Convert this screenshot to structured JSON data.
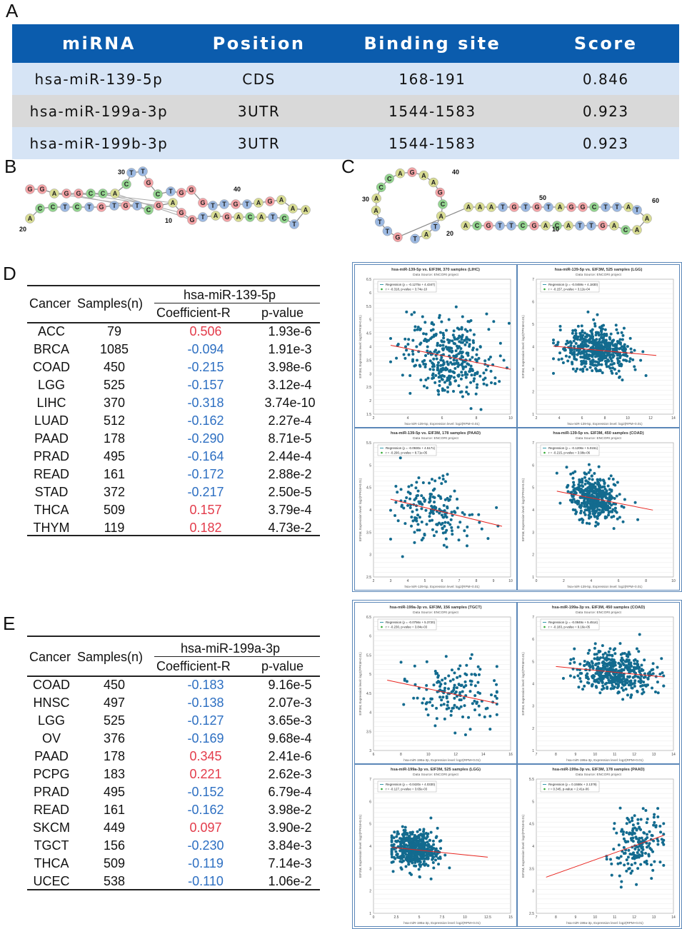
{
  "panel_labels": {
    "a": "A",
    "b": "B",
    "c": "C",
    "d": "D",
    "e": "E"
  },
  "table_a": {
    "headers": [
      "miRNA",
      "Position",
      "Binding site",
      "Score"
    ],
    "rows": [
      [
        "hsa-miR-139-5p",
        "CDS",
        "168-191",
        "0.846"
      ],
      [
        "hsa-miR-199a-3p",
        "3UTR",
        "1544-1583",
        "0.923"
      ],
      [
        "hsa-miR-199b-3p",
        "3UTR",
        "1544-1583",
        "0.923"
      ]
    ]
  },
  "structure_b": {
    "top_strand": "GGAGGCCA",
    "loop": "CTT",
    "bottom_strand": "ACCTCTGTGCTGGAGTTGTAGACATCTAAA",
    "numbers": [
      "30",
      "40",
      "20",
      "10"
    ]
  },
  "structure_c": {
    "loop": "TATACGAAGACCAATTG",
    "top_strand": "AAATGTGTAGGCTTA",
    "bottom_strand": "ACAGTTACAGCTTGCA",
    "numbers": [
      "40",
      "30",
      "20",
      "50",
      "60",
      "10"
    ]
  },
  "table_d": {
    "col_cancer": "Cancer",
    "col_samples": "Samples(n)",
    "mirna": "hsa-miR-139-5p",
    "col_r": "Coefficient-R",
    "col_p": "p-value",
    "rows": [
      {
        "cancer": "ACC",
        "n": "79",
        "r": "0.506",
        "p": "1.93e-6",
        "sign": "pos"
      },
      {
        "cancer": "BRCA",
        "n": "1085",
        "r": "-0.094",
        "p": "1.91e-3",
        "sign": "neg"
      },
      {
        "cancer": "COAD",
        "n": "450",
        "r": "-0.215",
        "p": "3.98e-6",
        "sign": "neg"
      },
      {
        "cancer": "LGG",
        "n": "525",
        "r": "-0.157",
        "p": "3.12e-4",
        "sign": "neg"
      },
      {
        "cancer": "LIHC",
        "n": "370",
        "r": "-0.318",
        "p": "3.74e-10",
        "sign": "neg"
      },
      {
        "cancer": "LUAD",
        "n": "512",
        "r": "-0.162",
        "p": "2.27e-4",
        "sign": "neg"
      },
      {
        "cancer": "PAAD",
        "n": "178",
        "r": "-0.290",
        "p": "8.71e-5",
        "sign": "neg"
      },
      {
        "cancer": "PRAD",
        "n": "495",
        "r": "-0.164",
        "p": "2.44e-4",
        "sign": "neg"
      },
      {
        "cancer": "READ",
        "n": "161",
        "r": "-0.172",
        "p": "2.88e-2",
        "sign": "neg"
      },
      {
        "cancer": "STAD",
        "n": "372",
        "r": "-0.217",
        "p": "2.50e-5",
        "sign": "neg"
      },
      {
        "cancer": "THCA",
        "n": "509",
        "r": "0.157",
        "p": "3.79e-4",
        "sign": "pos"
      },
      {
        "cancer": "THYM",
        "n": "119",
        "r": "0.182",
        "p": "4.73e-2",
        "sign": "pos"
      }
    ]
  },
  "table_e": {
    "col_cancer": "Cancer",
    "col_samples": "Samples(n)",
    "mirna": "hsa-miR-199a-3p",
    "col_r": "Coefficient-R",
    "col_p": "p-value",
    "rows": [
      {
        "cancer": "COAD",
        "n": "450",
        "r": "-0.183",
        "p": "9.16e-5",
        "sign": "neg"
      },
      {
        "cancer": "HNSC",
        "n": "497",
        "r": "-0.138",
        "p": "2.07e-3",
        "sign": "neg"
      },
      {
        "cancer": "LGG",
        "n": "525",
        "r": "-0.127",
        "p": "3.65e-3",
        "sign": "neg"
      },
      {
        "cancer": "OV",
        "n": "376",
        "r": "-0.169",
        "p": "9.68e-4",
        "sign": "neg"
      },
      {
        "cancer": "PAAD",
        "n": "178",
        "r": "0.345",
        "p": "2.41e-6",
        "sign": "pos"
      },
      {
        "cancer": "PCPG",
        "n": "183",
        "r": "0.221",
        "p": "2.62e-3",
        "sign": "pos"
      },
      {
        "cancer": "PRAD",
        "n": "495",
        "r": "-0.152",
        "p": "6.79e-4",
        "sign": "neg"
      },
      {
        "cancer": "READ",
        "n": "161",
        "r": "-0.162",
        "p": "3.98e-2",
        "sign": "neg"
      },
      {
        "cancer": "SKCM",
        "n": "449",
        "r": "0.097",
        "p": "3.90e-2",
        "sign": "pos"
      },
      {
        "cancer": "TGCT",
        "n": "156",
        "r": "-0.230",
        "p": "3.84e-3",
        "sign": "neg"
      },
      {
        "cancer": "THCA",
        "n": "509",
        "r": "-0.119",
        "p": "7.14e-3",
        "sign": "neg"
      },
      {
        "cancer": "UCEC",
        "n": "538",
        "r": "-0.110",
        "p": "1.06e-2",
        "sign": "neg"
      }
    ]
  },
  "colors": {
    "header_blue": "#0b5cad",
    "row_blue": "#d6e4f5",
    "row_grey": "#d9d9d9",
    "neg": "#2d6fc2",
    "pos": "#e33b4a",
    "dot": "#136b8f",
    "reg": "#e8251f"
  },
  "chart_data": [
    {
      "type": "scatter",
      "title": "hsa-miR-139-5p vs. EIF3M, 370 samples (LIHC)",
      "source": "Data Source: ENCORI project",
      "xlabel": "hsa-miR-139-5p, Expression level: log2(RPM+0.01)",
      "ylabel": "EIF3M, Expression level: log2(FPKM+0.01)",
      "legend_reg": "Regression (y = -0.1275x + 4.4347)",
      "legend_r": "r = -0.318, p-value = 3.74e-10",
      "xlim": [
        2,
        10
      ],
      "ylim": [
        1.5,
        6.5
      ],
      "xticks": [
        2,
        4,
        6,
        8,
        10
      ],
      "yticks": [
        1.5,
        2,
        2.5,
        3,
        3.5,
        4,
        4.5,
        5,
        5.5,
        6,
        6.5
      ],
      "slope": -0.1275,
      "intercept": 4.4347,
      "x_range": [
        3,
        10
      ],
      "n": 370,
      "x_mean": 6.4,
      "x_sd": 1.3,
      "y_sd": 0.7
    },
    {
      "type": "scatter",
      "title": "hsa-miR-139-5p vs. EIF3M, 525 samples (LGG)",
      "source": "Data Source: ENCORI project",
      "xlabel": "hsa-miR-139-5p, Expression level: log2(RPM+0.01)",
      "ylabel": "EIF3M, Expression level: log2(FPKM+0.01)",
      "legend_reg": "Regression (y = -0.0459x + 4.1830)",
      "legend_r": "r = -0.157, p-value = 3.12e-04",
      "xlim": [
        2,
        14
      ],
      "ylim": [
        1,
        7
      ],
      "xticks": [
        2,
        4,
        6,
        8,
        10,
        12,
        14
      ],
      "yticks": [
        1,
        2,
        3,
        4,
        5,
        6,
        7
      ],
      "slope": -0.0459,
      "intercept": 4.183,
      "x_range": [
        3.5,
        12.5
      ],
      "n": 525,
      "x_mean": 7.2,
      "x_sd": 1.5,
      "y_sd": 0.45
    },
    {
      "type": "scatter",
      "title": "hsa-miR-139-5p vs. EIF3M, 178 samples (PAAD)",
      "source": "Data Source: ENCORI project",
      "xlabel": "hsa-miR-139-5p, Expression level: log2(RPM+0.01)",
      "ylabel": "EIF3M, Expression level: log2(FPKM+0.01)",
      "legend_reg": "Regression (y = -0.0930x + 4.5171)",
      "legend_r": "r = -0.290, p-value = 8.71e-05",
      "xlim": [
        2,
        10
      ],
      "ylim": [
        2.5,
        5.5
      ],
      "xticks": [
        2,
        3,
        4,
        5,
        6,
        7,
        8,
        9,
        10
      ],
      "yticks": [
        2.5,
        3,
        3.5,
        4,
        4.5,
        5,
        5.5
      ],
      "slope": -0.093,
      "intercept": 4.5171,
      "x_range": [
        3,
        9.5
      ],
      "n": 178,
      "x_mean": 5.5,
      "x_sd": 1.2,
      "y_sd": 0.35
    },
    {
      "type": "scatter",
      "title": "hsa-miR-139-5p vs. EIF3M, 450 samples (COAD)",
      "source": "Data Source: ENCORI project",
      "xlabel": "hsa-miR-139-5p, Expression level: log2(RPM+0.01)",
      "ylabel": "EIF3M, Expression level: log2(FPKM+0.01)",
      "legend_reg": "Regression (y = -0.1206x + 5.0151)",
      "legend_r": "r = -0.215, p-value = 3.98e-06",
      "xlim": [
        0,
        10
      ],
      "ylim": [
        1,
        7
      ],
      "xticks": [
        0,
        2,
        4,
        6,
        8,
        10
      ],
      "yticks": [
        1,
        2,
        3,
        4,
        5,
        6,
        7
      ],
      "slope": -0.1206,
      "intercept": 5.0151,
      "x_range": [
        1.5,
        8.5
      ],
      "n": 450,
      "x_mean": 4.2,
      "x_sd": 0.9,
      "y_sd": 0.5
    },
    {
      "type": "scatter",
      "title": "hsa-miR-199a-3p vs. EIF3M, 156 samples (TGCT)",
      "source": "Data Source: ENCORI project",
      "xlabel": "hsa-miR-199a-3p, Expression level: log2(RPM+0.01)",
      "ylabel": "EIF3M, Expression level: log2(FPKM+0.01)",
      "legend_reg": "Regression (y = -0.0756x + 5.3720)",
      "legend_r": "r = -0.230, p-value = 3.84e-03",
      "xlim": [
        6,
        16
      ],
      "ylim": [
        3,
        6.5
      ],
      "xticks": [
        6,
        8,
        10,
        12,
        14,
        16
      ],
      "yticks": [
        3,
        3.5,
        4,
        4.5,
        5,
        5.5,
        6,
        6.5
      ],
      "slope": -0.0756,
      "intercept": 5.372,
      "x_range": [
        7,
        15
      ],
      "n": 156,
      "x_mean": 11.8,
      "x_sd": 1.6,
      "y_sd": 0.45
    },
    {
      "type": "scatter",
      "title": "hsa-miR-199a-3p vs. EIF3M, 450 samples (COAD)",
      "source": "Data Source: ENCORI project",
      "xlabel": "hsa-miR-199a-3p, Expression level: log2(RPM+0.01)",
      "ylabel": "EIF3M, Expression level: log2(FPKM+0.01)",
      "legend_reg": "Regression (y = -0.0849x + 5.4514)",
      "legend_r": "r = -0.183, p-value = 9.16e-05",
      "xlim": [
        7,
        14
      ],
      "ylim": [
        1,
        7
      ],
      "xticks": [
        7,
        8,
        9,
        10,
        11,
        12,
        13,
        14
      ],
      "yticks": [
        1,
        2,
        3,
        4,
        5,
        6,
        7
      ],
      "slope": -0.0849,
      "intercept": 5.4514,
      "x_range": [
        8,
        13.5
      ],
      "n": 450,
      "x_mean": 11,
      "x_sd": 1.0,
      "y_sd": 0.45
    },
    {
      "type": "scatter",
      "title": "hsa-miR-199a-3p vs. EIF3M, 525 samples (LGG)",
      "source": "Data Source: ENCORI project",
      "xlabel": "hsa-miR-199a-3p, Expression level: log2(RPM+0.01)",
      "ylabel": "EIF3M, Expression level: log2(FPKM+0.01)",
      "legend_reg": "Regression (y = -0.0420x + 4.0330)",
      "legend_r": "r = -0.127, p-value = 3.65e-03",
      "xlim": [
        0,
        15
      ],
      "ylim": [
        1,
        7
      ],
      "xticks": [
        0,
        2.5,
        5,
        7.5,
        10,
        12.5,
        15
      ],
      "yticks": [
        1,
        2,
        3,
        4,
        5,
        6,
        7
      ],
      "slope": -0.042,
      "intercept": 4.033,
      "x_range": [
        2,
        12.5
      ],
      "n": 525,
      "x_mean": 4.5,
      "x_sd": 1.2,
      "y_sd": 0.4
    },
    {
      "type": "scatter",
      "title": "hsa-miR-199a-3p vs. EIF3M, 178 samples (PAAD)",
      "source": "Data Source: ENCORI project",
      "xlabel": "hsa-miR-199a-3p, Expression level: log2(RPM+0.01)",
      "ylabel": "EIF3M, Expression level: log2(FPKM+0.01)",
      "legend_reg": "Regression (y = 0.1558x + 2.1379)",
      "legend_r": "r = 0.345, p-value = 2.41e-06",
      "xlim": [
        7,
        14
      ],
      "ylim": [
        2.5,
        5.5
      ],
      "xticks": [
        7,
        8,
        9,
        10,
        11,
        12,
        13,
        14
      ],
      "yticks": [
        2.5,
        3,
        3.5,
        4,
        4.5,
        5,
        5.5
      ],
      "slope": 0.1558,
      "intercept": 2.1379,
      "x_range": [
        7.5,
        13.5
      ],
      "n": 178,
      "x_mean": 12.2,
      "x_sd": 0.6,
      "y_sd": 0.35
    }
  ]
}
